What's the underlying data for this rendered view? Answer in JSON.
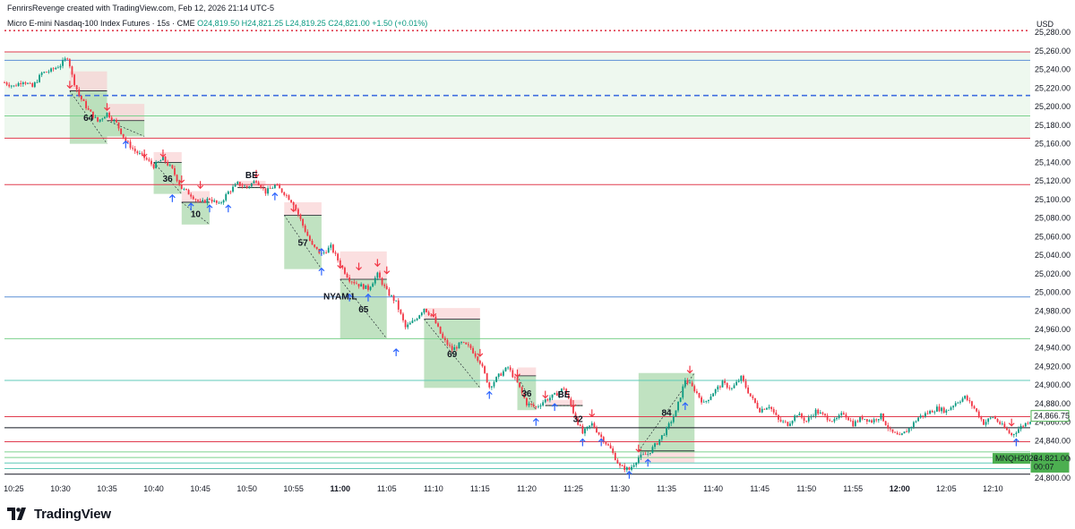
{
  "header": {
    "attribution": "FenrirsRevenge created with TradingView.com, Feb 12, 2026 21:14 UTC-5",
    "symbol": "Micro E-mini Nasdaq-100 Index Futures · 15s · CME",
    "ohlc": "O24,819.50 H24,821.25 L24,819.25 C24,821.00 +1.50 (+0.01%)"
  },
  "footer": {
    "brand": "TradingView"
  },
  "colors": {
    "up": "#089981",
    "down": "#f23645",
    "red_line": "#e03c4e",
    "blue_line": "#5b8fd6",
    "green_line": "#7bd18d",
    "teal_line": "#5fc9b8",
    "zone_green": "#a5d6a7",
    "zone_red": "#f8c9cc"
  },
  "chart_data": {
    "type": "candlestick",
    "currency": "USD",
    "y_ticks": [
      "25,280.00",
      "25,260.00",
      "25,240.00",
      "25,220.00",
      "25,200.00",
      "25,180.00",
      "25,160.00",
      "25,140.00",
      "25,120.00",
      "25,100.00",
      "25,080.00",
      "25,060.00",
      "25,040.00",
      "25,020.00",
      "25,000.00",
      "24,980.00",
      "24,960.00",
      "24,940.00",
      "24,920.00",
      "24,900.00",
      "24,880.00",
      "24,860.00",
      "24,840.00",
      "24,820.00",
      "24,800.00"
    ],
    "ylim": [
      24797,
      25286
    ],
    "x_ticks": [
      "10:25",
      "10:30",
      "10:35",
      "10:40",
      "10:45",
      "10:50",
      "10:55",
      "11:00",
      "11:05",
      "11:10",
      "11:15",
      "11:20",
      "11:25",
      "11:30",
      "11:35",
      "11:40",
      "11:45",
      "11:50",
      "11:55",
      "12:00",
      "12:05",
      "12:10"
    ],
    "x_bold": [
      "11:00",
      "12:00"
    ],
    "xlim": [
      "10:24",
      "12:14"
    ],
    "price_labels": [
      {
        "text": "24,866.75",
        "price": 24866.75,
        "style": "outline"
      },
      {
        "text": "24,821.00",
        "price": 24821,
        "style": "filled"
      },
      {
        "text": "00:07",
        "price": 24812,
        "style": "filled"
      }
    ],
    "symbol_tag": {
      "text": "MNQH2026",
      "price": 24821
    },
    "horizontal_lines": [
      {
        "price": 25282,
        "color": "#e03c4e",
        "style": "dotted"
      },
      {
        "price": 25259,
        "color": "#e03c4e",
        "style": "solid"
      },
      {
        "price": 25250,
        "color": "#5b8fd6",
        "style": "solid"
      },
      {
        "price": 25212,
        "color": "#3f6ee0",
        "style": "dashed"
      },
      {
        "price": 25190,
        "color": "#7bd18d",
        "style": "solid"
      },
      {
        "price": 25166,
        "color": "#e03c4e",
        "style": "solid"
      },
      {
        "price": 25116,
        "color": "#e03c4e",
        "style": "solid"
      },
      {
        "price": 24995,
        "color": "#5b8fd6",
        "style": "solid"
      },
      {
        "price": 24950,
        "color": "#7bd18d",
        "style": "solid"
      },
      {
        "price": 24905,
        "color": "#5fc9b8",
        "style": "solid"
      },
      {
        "price": 24866,
        "color": "#e03c4e",
        "style": "solid"
      },
      {
        "price": 24854,
        "color": "#131722",
        "style": "solid"
      },
      {
        "price": 24839,
        "color": "#e03c4e",
        "style": "solid"
      },
      {
        "price": 24828,
        "color": "#7bd18d",
        "style": "solid"
      },
      {
        "price": 24822,
        "color": "#7bd18d",
        "style": "solid"
      },
      {
        "price": 24816,
        "color": "#5fc9b8",
        "style": "solid"
      },
      {
        "price": 24810,
        "color": "#5fc9b8",
        "style": "solid"
      },
      {
        "price": 24804,
        "color": "#131722",
        "style": "solid"
      }
    ],
    "range_band": {
      "from": 25166,
      "to": 25259
    },
    "trades": [
      {
        "t1": "10:31",
        "t2": "10:35",
        "entry": 25217,
        "stop": 25238,
        "target": 25160,
        "label": "64"
      },
      {
        "t1": "10:35",
        "t2": "10:39",
        "entry": 25185,
        "stop": 25203,
        "target": 25168,
        "label": ""
      },
      {
        "t1": "10:40",
        "t2": "10:43",
        "entry": 25140,
        "stop": 25151,
        "target": 25106,
        "label": "36"
      },
      {
        "t1": "10:43",
        "t2": "10:46",
        "entry": 25097,
        "stop": 25109,
        "target": 25073,
        "label": "10"
      },
      {
        "t1": "10:49",
        "t2": "10:52",
        "entry": 25113,
        "stop": 25120,
        "target": 25113,
        "label": "BE"
      },
      {
        "t1": "10:54",
        "t2": "10:58",
        "entry": 25083,
        "stop": 25097,
        "target": 25025,
        "label": "57"
      },
      {
        "t1": "11:00",
        "t2": "11:05",
        "entry": 25014,
        "stop": 25044,
        "target": 24950,
        "label": "65"
      },
      {
        "t1": "11:09",
        "t2": "11:15",
        "entry": 24971,
        "stop": 24983,
        "target": 24897,
        "label": "69"
      },
      {
        "t1": "11:19",
        "t2": "11:21",
        "entry": 24910,
        "stop": 24919,
        "target": 24873,
        "label": "36"
      },
      {
        "t1": "11:22",
        "t2": "11:26",
        "entry": 24878,
        "stop": 24884,
        "target": 24878,
        "label": "BE"
      },
      {
        "t1": "11:32",
        "t2": "11:38",
        "entry": 24829,
        "stop": 24816,
        "target": 24913,
        "label": "84"
      }
    ],
    "trade_labels_extra": [
      {
        "text": "32",
        "t": "11:25.5",
        "price": 24863
      },
      {
        "text": "NYAM.L",
        "t": "11:00",
        "price": 24995
      }
    ],
    "signals": [
      {
        "dir": "down",
        "t": "10:31",
        "price": 25224
      },
      {
        "dir": "down",
        "t": "10:35",
        "price": 25200
      },
      {
        "dir": "up",
        "t": "10:37",
        "price": 25159
      },
      {
        "dir": "down",
        "t": "10:39",
        "price": 25150
      },
      {
        "dir": "down",
        "t": "10:41",
        "price": 25150
      },
      {
        "dir": "down",
        "t": "10:43",
        "price": 25122
      },
      {
        "dir": "up",
        "t": "10:42",
        "price": 25101
      },
      {
        "dir": "down",
        "t": "10:45",
        "price": 25116
      },
      {
        "dir": "up",
        "t": "10:44",
        "price": 25092
      },
      {
        "dir": "up",
        "t": "10:46",
        "price": 25090
      },
      {
        "dir": "up",
        "t": "10:48",
        "price": 25090
      },
      {
        "dir": "down",
        "t": "10:51",
        "price": 25128
      },
      {
        "dir": "up",
        "t": "10:53",
        "price": 25103
      },
      {
        "dir": "down",
        "t": "10:55",
        "price": 25091
      },
      {
        "dir": "up",
        "t": "10:58",
        "price": 25043
      },
      {
        "dir": "up",
        "t": "10:58",
        "price": 25022
      },
      {
        "dir": "down",
        "t": "11:00",
        "price": 25030
      },
      {
        "dir": "down",
        "t": "11:02",
        "price": 25028
      },
      {
        "dir": "down",
        "t": "11:04",
        "price": 25032
      },
      {
        "dir": "down",
        "t": "11:05",
        "price": 25024
      },
      {
        "dir": "up",
        "t": "11:01",
        "price": 24994
      },
      {
        "dir": "up",
        "t": "11:03",
        "price": 24994
      },
      {
        "dir": "up",
        "t": "11:06",
        "price": 24935
      },
      {
        "dir": "down",
        "t": "11:10",
        "price": 24978
      },
      {
        "dir": "down",
        "t": "11:15",
        "price": 24935
      },
      {
        "dir": "up",
        "t": "11:16",
        "price": 24889
      },
      {
        "dir": "down",
        "t": "11:19",
        "price": 24913
      },
      {
        "dir": "down",
        "t": "11:22",
        "price": 24890
      },
      {
        "dir": "up",
        "t": "11:23",
        "price": 24876
      },
      {
        "dir": "up",
        "t": "11:21",
        "price": 24860
      },
      {
        "dir": "down",
        "t": "11:25",
        "price": 24880
      },
      {
        "dir": "down",
        "t": "11:27",
        "price": 24870
      },
      {
        "dir": "up",
        "t": "11:26",
        "price": 24838
      },
      {
        "dir": "up",
        "t": "11:28",
        "price": 24838
      },
      {
        "dir": "down",
        "t": "11:32",
        "price": 24832
      },
      {
        "dir": "up",
        "t": "11:31",
        "price": 24803
      },
      {
        "dir": "up",
        "t": "11:33",
        "price": 24816
      },
      {
        "dir": "down",
        "t": "11:37.5",
        "price": 24917
      },
      {
        "dir": "up",
        "t": "11:37",
        "price": 24877
      },
      {
        "dir": "down",
        "t": "12:12",
        "price": 24860
      },
      {
        "dir": "up",
        "t": "12:12.5",
        "price": 24838
      }
    ],
    "path": [
      [
        "10:24",
        25226
      ],
      [
        "10:25",
        25222
      ],
      [
        "10:26",
        25228
      ],
      [
        "10:27",
        25221
      ],
      [
        "10:28",
        25236
      ],
      [
        "10:29",
        25239
      ],
      [
        "10:30",
        25245
      ],
      [
        "10:30.8",
        25254
      ],
      [
        "10:31.3",
        25231
      ],
      [
        "10:32",
        25212
      ],
      [
        "10:33",
        25196
      ],
      [
        "10:34",
        25184
      ],
      [
        "10:35",
        25193
      ],
      [
        "10:36",
        25182
      ],
      [
        "10:37",
        25163
      ],
      [
        "10:38",
        25152
      ],
      [
        "10:39",
        25145
      ],
      [
        "10:40",
        25136
      ],
      [
        "10:41",
        25144
      ],
      [
        "10:42",
        25132
      ],
      [
        "10:43",
        25112
      ],
      [
        "10:44",
        25105
      ],
      [
        "10:45",
        25096
      ],
      [
        "10:46",
        25101
      ],
      [
        "10:47",
        25094
      ],
      [
        "10:48",
        25108
      ],
      [
        "10:49",
        25117
      ],
      [
        "10:50",
        25113
      ],
      [
        "10:51",
        25121
      ],
      [
        "10:52",
        25108
      ],
      [
        "10:53",
        25115
      ],
      [
        "10:54",
        25107
      ],
      [
        "10:55",
        25096
      ],
      [
        "10:56",
        25072
      ],
      [
        "10:57",
        25050
      ],
      [
        "10:58",
        25041
      ],
      [
        "10:59",
        25049
      ],
      [
        "11:00",
        25030
      ],
      [
        "11:01",
        25014
      ],
      [
        "11:02",
        25008
      ],
      [
        "11:03",
        25004
      ],
      [
        "11:04",
        25019
      ],
      [
        "11:05",
        25001
      ],
      [
        "11:06",
        24989
      ],
      [
        "11:07",
        24962
      ],
      [
        "11:08",
        24970
      ],
      [
        "11:09",
        24983
      ],
      [
        "11:10",
        24972
      ],
      [
        "11:11",
        24950
      ],
      [
        "11:12",
        24938
      ],
      [
        "11:13",
        24945
      ],
      [
        "11:14",
        24940
      ],
      [
        "11:15",
        24925
      ],
      [
        "11:16",
        24898
      ],
      [
        "11:17",
        24910
      ],
      [
        "11:18",
        24919
      ],
      [
        "11:19",
        24902
      ],
      [
        "11:20",
        24880
      ],
      [
        "11:21",
        24876
      ],
      [
        "11:22",
        24884
      ],
      [
        "11:23",
        24889
      ],
      [
        "11:24",
        24897
      ],
      [
        "11:25",
        24871
      ],
      [
        "11:26",
        24848
      ],
      [
        "11:27",
        24858
      ],
      [
        "11:28",
        24844
      ],
      [
        "11:29",
        24831
      ],
      [
        "11:30",
        24812
      ],
      [
        "11:31",
        24809
      ],
      [
        "11:32",
        24822
      ],
      [
        "11:33",
        24826
      ],
      [
        "11:34",
        24838
      ],
      [
        "11:35",
        24852
      ],
      [
        "11:36",
        24871
      ],
      [
        "11:37",
        24906
      ],
      [
        "11:38",
        24895
      ],
      [
        "11:39",
        24880
      ],
      [
        "11:40",
        24892
      ],
      [
        "11:41",
        24902
      ],
      [
        "11:42",
        24896
      ],
      [
        "11:43",
        24908
      ],
      [
        "11:44",
        24888
      ],
      [
        "11:45",
        24873
      ],
      [
        "11:46",
        24878
      ],
      [
        "11:47",
        24862
      ],
      [
        "11:48",
        24858
      ],
      [
        "11:49",
        24869
      ],
      [
        "11:50",
        24861
      ],
      [
        "11:51",
        24872
      ],
      [
        "11:52",
        24866
      ],
      [
        "11:53",
        24861
      ],
      [
        "11:54",
        24870
      ],
      [
        "11:55",
        24858
      ],
      [
        "11:56",
        24865
      ],
      [
        "11:57",
        24861
      ],
      [
        "11:58",
        24867
      ],
      [
        "11:59",
        24850
      ],
      [
        "12:00",
        24844
      ],
      [
        "12:01",
        24853
      ],
      [
        "12:02",
        24865
      ],
      [
        "12:03",
        24870
      ],
      [
        "12:04",
        24875
      ],
      [
        "12:05",
        24872
      ],
      [
        "12:06",
        24881
      ],
      [
        "12:07",
        24887
      ],
      [
        "12:08",
        24875
      ],
      [
        "12:09",
        24859
      ],
      [
        "12:10",
        24866
      ],
      [
        "12:11",
        24856
      ],
      [
        "12:12",
        24846
      ],
      [
        "12:13",
        24855
      ],
      [
        "12:14",
        24862
      ]
    ]
  }
}
